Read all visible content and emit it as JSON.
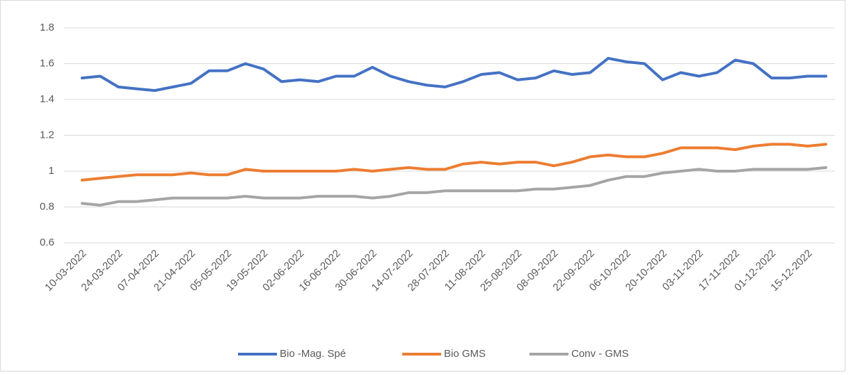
{
  "chart_data": {
    "type": "line",
    "categories": [
      "10-03-2022",
      null,
      "24-03-2022",
      null,
      "07-04-2022",
      null,
      "21-04-2022",
      null,
      "05-05-2022",
      null,
      "19-05-2022",
      null,
      "02-06-2022",
      null,
      "16-06-2022",
      null,
      "30-06-2022",
      null,
      "14-07-2022",
      null,
      "28-07-2022",
      null,
      "11-08-2022",
      null,
      "25-08-2022",
      null,
      "08-09-2022",
      null,
      "22-09-2022",
      null,
      "06-10-2022",
      null,
      "20-10-2022",
      null,
      "03-11-2022",
      null,
      "17-11-2022",
      null,
      "01-12-2022",
      null,
      "15-12-2022",
      null
    ],
    "series": [
      {
        "name": "Bio -Mag. Spé",
        "color": "#4472c4",
        "values": [
          1.52,
          1.53,
          1.47,
          1.46,
          1.45,
          1.47,
          1.49,
          1.56,
          1.56,
          1.6,
          1.57,
          1.5,
          1.51,
          1.5,
          1.53,
          1.53,
          1.58,
          1.53,
          1.5,
          1.48,
          1.47,
          1.5,
          1.54,
          1.55,
          1.51,
          1.52,
          1.56,
          1.54,
          1.55,
          1.63,
          1.61,
          1.6,
          1.51,
          1.55,
          1.53,
          1.55,
          1.62,
          1.6,
          1.52,
          1.52,
          1.53,
          1.53
        ]
      },
      {
        "name": "Bio GMS",
        "color": "#ed7d31",
        "values": [
          0.95,
          0.96,
          0.97,
          0.98,
          0.98,
          0.98,
          0.99,
          0.98,
          0.98,
          1.01,
          1.0,
          1.0,
          1.0,
          1.0,
          1.0,
          1.01,
          1.0,
          1.01,
          1.02,
          1.01,
          1.01,
          1.04,
          1.05,
          1.04,
          1.05,
          1.05,
          1.03,
          1.05,
          1.08,
          1.09,
          1.08,
          1.08,
          1.1,
          1.13,
          1.13,
          1.13,
          1.12,
          1.14,
          1.15,
          1.15,
          1.14,
          1.15
        ]
      },
      {
        "name": "Conv - GMS",
        "color": "#a5a5a5",
        "values": [
          0.82,
          0.81,
          0.83,
          0.83,
          0.84,
          0.85,
          0.85,
          0.85,
          0.85,
          0.86,
          0.85,
          0.85,
          0.85,
          0.86,
          0.86,
          0.86,
          0.85,
          0.86,
          0.88,
          0.88,
          0.89,
          0.89,
          0.89,
          0.89,
          0.89,
          0.9,
          0.9,
          0.91,
          0.92,
          0.95,
          0.97,
          0.97,
          0.99,
          1.0,
          1.01,
          1.0,
          1.0,
          1.01,
          1.01,
          1.01,
          1.01,
          1.02
        ]
      }
    ],
    "ylim": [
      0.6,
      1.8
    ],
    "yticks": [
      0.6,
      0.8,
      1,
      1.2,
      1.4,
      1.6,
      1.8
    ],
    "grid": true,
    "legend": "bottom"
  }
}
